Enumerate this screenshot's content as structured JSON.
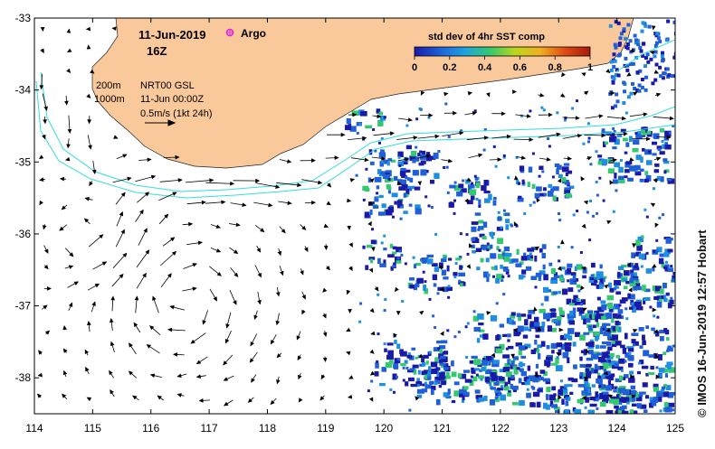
{
  "header": {
    "date": "11-Jun-2019",
    "time": "16Z",
    "argo_label": "Argo"
  },
  "info_block": {
    "contour_1": "200m",
    "contour_2": "1000m",
    "product": "NRT00 GSL",
    "product_time": "11-Jun 00:00Z",
    "vector_scale": "0.5m/s (1kt 24h)"
  },
  "colorbar": {
    "title": "std dev of 4hr SST comp",
    "ticks": [
      "0",
      "0.2",
      "0.4",
      "0.6",
      "0.8",
      "1"
    ],
    "range": [
      0,
      1
    ],
    "colors": [
      "#1a1aa8",
      "#1f5fd8",
      "#1ea3e0",
      "#34c86f",
      "#b9d81e",
      "#f0b020",
      "#e04a14",
      "#a41a0a"
    ]
  },
  "credit": "© IMOS 16-Jun-2019 12:57 Hobart",
  "axes": {
    "x_ticks": [
      "114",
      "115",
      "116",
      "117",
      "118",
      "119",
      "120",
      "121",
      "122",
      "123",
      "124",
      "125"
    ],
    "y_ticks": [
      "-33",
      "-34",
      "-35",
      "-36",
      "-37",
      "-38"
    ],
    "lon_range": [
      114,
      125
    ],
    "lat_range": [
      -38.5,
      -33
    ]
  },
  "style": {
    "land_color": "#f9c89b",
    "shelf_color": "#33dddd",
    "argo_color": "#e022e0"
  }
}
